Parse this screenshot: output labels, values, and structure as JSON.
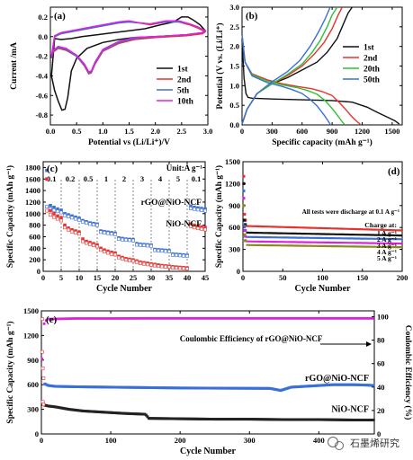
{
  "watermark": {
    "text": "石墨烯研究"
  },
  "chart_data": [
    {
      "panel": "(a)",
      "type": "line",
      "xlabel": "Potential vs (Li/Li⁺)/V",
      "ylabel": "Current /mA",
      "xlim": [
        0,
        3.0
      ],
      "ylim": [
        -0.9,
        0.3
      ],
      "xticks": [
        "0.0",
        "0.5",
        "1.0",
        "1.5",
        "2.0",
        "2.5",
        "3.0"
      ],
      "yticks": [
        "0.2",
        "0.0",
        "-0.2",
        "-0.4",
        "-0.6",
        "-0.8"
      ],
      "legend_position": "right",
      "colors": [
        "#111111",
        "#e8322d",
        "#3b6fd8",
        "#e020e0"
      ],
      "series": [
        {
          "name": "1st",
          "x": [
            0.02,
            0.08,
            0.15,
            0.22,
            0.28,
            0.33,
            0.4,
            0.5,
            0.7,
            1.0,
            1.3,
            1.6,
            2.0,
            2.3,
            2.6,
            2.9,
            2.95,
            2.85,
            2.72,
            2.62,
            2.5,
            2.35,
            2.1,
            1.8,
            1.5,
            1.2,
            0.9,
            0.6,
            0.4,
            0.2,
            0.08,
            0.02
          ],
          "y": [
            -0.4,
            -0.55,
            -0.66,
            -0.75,
            -0.74,
            -0.62,
            -0.35,
            -0.22,
            -0.12,
            -0.06,
            -0.03,
            -0.01,
            0.0,
            0.01,
            0.02,
            0.04,
            0.06,
            0.12,
            0.17,
            0.2,
            0.2,
            0.15,
            0.12,
            0.08,
            0.06,
            0.04,
            0.02,
            0.0,
            -0.02,
            -0.03,
            -0.02,
            -0.4
          ]
        },
        {
          "name": "2nd",
          "x": [
            0.02,
            0.05,
            0.15,
            0.3,
            0.5,
            0.65,
            0.73,
            0.78,
            0.85,
            1.0,
            1.3,
            1.6,
            2.0,
            2.3,
            2.6,
            2.9,
            2.95,
            2.8,
            2.65,
            2.45,
            2.2,
            1.9,
            1.7,
            1.5,
            1.3,
            1.0,
            0.7,
            0.4,
            0.2,
            0.08,
            0.02
          ],
          "y": [
            -0.22,
            -0.16,
            -0.12,
            -0.14,
            -0.2,
            -0.3,
            -0.38,
            -0.37,
            -0.28,
            -0.15,
            -0.07,
            -0.03,
            -0.01,
            0.0,
            0.01,
            0.03,
            0.05,
            0.09,
            0.12,
            0.15,
            0.15,
            0.12,
            0.14,
            0.15,
            0.14,
            0.11,
            0.08,
            0.05,
            0.03,
            0.0,
            -0.22
          ]
        },
        {
          "name": "5th",
          "x": [
            0.02,
            0.05,
            0.15,
            0.3,
            0.5,
            0.65,
            0.73,
            0.78,
            0.85,
            1.0,
            1.3,
            1.6,
            2.0,
            2.3,
            2.6,
            2.9,
            2.95,
            2.8,
            2.65,
            2.45,
            2.2,
            1.9,
            1.7,
            1.5,
            1.3,
            1.0,
            0.7,
            0.4,
            0.2,
            0.08,
            0.02
          ],
          "y": [
            -0.21,
            -0.15,
            -0.11,
            -0.13,
            -0.2,
            -0.29,
            -0.37,
            -0.36,
            -0.27,
            -0.14,
            -0.06,
            -0.02,
            0.0,
            0.01,
            0.02,
            0.04,
            0.06,
            0.1,
            0.13,
            0.15,
            0.15,
            0.13,
            0.14,
            0.15,
            0.14,
            0.11,
            0.08,
            0.05,
            0.03,
            0.0,
            -0.21
          ]
        },
        {
          "name": "10th",
          "x": [
            0.02,
            0.05,
            0.15,
            0.3,
            0.5,
            0.65,
            0.73,
            0.78,
            0.85,
            1.0,
            1.3,
            1.6,
            2.0,
            2.3,
            2.6,
            2.9,
            2.95,
            2.8,
            2.65,
            2.45,
            2.2,
            1.9,
            1.7,
            1.5,
            1.3,
            1.0,
            0.7,
            0.4,
            0.2,
            0.08,
            0.02
          ],
          "y": [
            -0.2,
            -0.14,
            -0.1,
            -0.12,
            -0.19,
            -0.28,
            -0.36,
            -0.35,
            -0.26,
            -0.13,
            -0.05,
            -0.01,
            0.0,
            0.01,
            0.02,
            0.04,
            0.06,
            0.1,
            0.13,
            0.16,
            0.16,
            0.13,
            0.14,
            0.16,
            0.15,
            0.12,
            0.09,
            0.06,
            0.04,
            0.01,
            -0.2
          ]
        }
      ]
    },
    {
      "panel": "(b)",
      "type": "line",
      "xlabel": "Specific capacity (mAh g⁻¹)",
      "ylabel": "Potential (V vs. (Li/Li⁺)",
      "xlim": [
        0,
        1600
      ],
      "ylim": [
        0,
        3.0
      ],
      "xticks": [
        "0",
        "300",
        "600",
        "900",
        "1200",
        "1500"
      ],
      "yticks": [
        "0.0",
        "0.5",
        "1.0",
        "1.5",
        "2.0",
        "2.5",
        "3.0"
      ],
      "legend_position": "right",
      "colors": [
        "#111111",
        "#e8322d",
        "#2ec22e",
        "#3b6fd8"
      ],
      "series": [
        {
          "name": "1st",
          "discharge_x": [
            0,
            20,
            40,
            60,
            100,
            300,
            600,
            900,
            1100,
            1250,
            1350,
            1450,
            1530,
            1570
          ],
          "discharge_y": [
            2.2,
            1.2,
            0.8,
            0.7,
            0.68,
            0.66,
            0.64,
            0.62,
            0.58,
            0.45,
            0.32,
            0.2,
            0.1,
            0.02
          ],
          "charge_x": [
            0,
            50,
            150,
            300,
            450,
            600,
            750,
            850,
            950,
            1000,
            1060,
            1100
          ],
          "charge_y": [
            0.02,
            0.4,
            0.8,
            1.05,
            1.2,
            1.4,
            1.6,
            1.85,
            2.2,
            2.5,
            2.85,
            3.0
          ]
        },
        {
          "name": "2nd",
          "discharge_x": [
            0,
            30,
            100,
            250,
            400,
            550,
            700,
            800,
            900,
            980,
            1050,
            1100,
            1150,
            1180
          ],
          "discharge_y": [
            2.3,
            1.6,
            1.3,
            1.15,
            1.05,
            0.98,
            0.92,
            0.85,
            0.75,
            0.55,
            0.35,
            0.2,
            0.08,
            0.02
          ],
          "charge_x": [
            0,
            50,
            150,
            300,
            450,
            600,
            720,
            820,
            900,
            960,
            1000
          ],
          "charge_y": [
            0.02,
            0.4,
            0.8,
            1.05,
            1.25,
            1.5,
            1.8,
            2.1,
            2.45,
            2.8,
            3.0
          ]
        },
        {
          "name": "20th",
          "discharge_x": [
            0,
            30,
            100,
            250,
            400,
            550,
            650,
            750,
            830,
            900,
            960,
            1000,
            1020
          ],
          "discharge_y": [
            2.3,
            1.6,
            1.28,
            1.12,
            1.02,
            0.95,
            0.88,
            0.78,
            0.62,
            0.42,
            0.22,
            0.08,
            0.02
          ],
          "charge_x": [
            0,
            50,
            150,
            300,
            450,
            600,
            700,
            780,
            850,
            900,
            950
          ],
          "charge_y": [
            0.02,
            0.4,
            0.8,
            1.05,
            1.28,
            1.55,
            1.85,
            2.15,
            2.5,
            2.8,
            3.0
          ]
        },
        {
          "name": "50th",
          "discharge_x": [
            0,
            30,
            100,
            250,
            400,
            500,
            600,
            680,
            750,
            820,
            860,
            880
          ],
          "discharge_y": [
            2.3,
            1.6,
            1.25,
            1.08,
            0.98,
            0.9,
            0.8,
            0.65,
            0.48,
            0.25,
            0.1,
            0.02
          ],
          "charge_x": [
            0,
            50,
            150,
            300,
            450,
            580,
            680,
            760,
            830,
            880
          ],
          "charge_y": [
            0.02,
            0.4,
            0.8,
            1.1,
            1.35,
            1.65,
            2.0,
            2.35,
            2.7,
            3.0
          ]
        }
      ]
    },
    {
      "panel": "(c)",
      "type": "scatter",
      "xlabel": "Cycle Number",
      "ylabel": "Specific Capacity (mAh g⁻¹)",
      "xlim": [
        0,
        45
      ],
      "ylim": [
        0,
        1900
      ],
      "xticks": [
        "0",
        "5",
        "10",
        "15",
        "20",
        "25",
        "30",
        "35",
        "40",
        "45"
      ],
      "yticks": [
        "0",
        "200",
        "400",
        "600",
        "800",
        "1000",
        "1200",
        "1400",
        "1600",
        "1800"
      ],
      "unit_label": "Unit:A g⁻¹",
      "rate_labels": [
        {
          "text": "0.1",
          "x": 2.3
        },
        {
          "text": "0.2",
          "x": 7.5
        },
        {
          "text": "0.5",
          "x": 12.5
        },
        {
          "text": "1",
          "x": 17.5
        },
        {
          "text": "2",
          "x": 22.5
        },
        {
          "text": "3",
          "x": 27.5
        },
        {
          "text": "4",
          "x": 32.5
        },
        {
          "text": "5",
          "x": 37.5
        },
        {
          "text": "0.1",
          "x": 42.5
        }
      ],
      "dividers_x": [
        5,
        10,
        15,
        20,
        25,
        30,
        35,
        40
      ],
      "colors": {
        "rGO@NiO-NCF": "#3b6fd8",
        "NiO-NCF": "#e8322d",
        "charge_edge": "#111111"
      },
      "series": [
        {
          "name": "rGO@NiO-NCF",
          "discharge": [
            1750,
            1140,
            1110,
            1080,
            1060,
            1000,
            980,
            960,
            940,
            920,
            880,
            860,
            840,
            830,
            820,
            700,
            690,
            680,
            670,
            660,
            580,
            570,
            560,
            555,
            550,
            480,
            470,
            465,
            460,
            455,
            380,
            375,
            370,
            365,
            360,
            300,
            295,
            290,
            285,
            280,
            1130,
            1110,
            1100,
            1090,
            1080
          ],
          "charge": [
            1120,
            1080,
            1060,
            1040,
            1020,
            970,
            950,
            930,
            910,
            890,
            860,
            840,
            820,
            810,
            800,
            680,
            670,
            660,
            650,
            640,
            560,
            550,
            545,
            540,
            535,
            460,
            455,
            450,
            445,
            440,
            365,
            360,
            355,
            350,
            345,
            285,
            280,
            275,
            270,
            265,
            1090,
            1080,
            1070,
            1060,
            1050
          ]
        },
        {
          "name": "NiO-NCF",
          "discharge": [
            1600,
            1050,
            1000,
            960,
            930,
            800,
            750,
            720,
            700,
            680,
            560,
            520,
            500,
            480,
            460,
            400,
            370,
            350,
            330,
            320,
            260,
            240,
            220,
            210,
            200,
            180,
            160,
            150,
            140,
            130,
            120,
            110,
            100,
            95,
            90,
            80,
            75,
            70,
            65,
            60,
            820,
            800,
            780,
            770,
            760
          ],
          "charge": [
            1050,
            980,
            940,
            910,
            880,
            760,
            720,
            690,
            670,
            650,
            520,
            490,
            470,
            450,
            430,
            370,
            340,
            320,
            300,
            290,
            240,
            220,
            200,
            190,
            180,
            160,
            140,
            130,
            120,
            110,
            100,
            90,
            85,
            80,
            75,
            65,
            60,
            55,
            50,
            45,
            780,
            760,
            745,
            735,
            725
          ]
        }
      ]
    },
    {
      "panel": "(d)",
      "type": "scatter",
      "xlabel": "Cycle Number",
      "ylabel": "Specific Capacity (mAh g⁻¹)",
      "xlim": [
        0,
        200
      ],
      "ylim": [
        0,
        1500
      ],
      "xticks": [
        "0",
        "50",
        "100",
        "150",
        "200"
      ],
      "yticks": [
        "0",
        "300",
        "600",
        "900",
        "1200",
        "1500"
      ],
      "annotation": "All tests were discharge at 0.1 A g⁻¹",
      "charge_label": "Charge at:",
      "colors": [
        "#e8322d",
        "#111111",
        "#3b6fd8",
        "#e020e0",
        "#8a8a1a"
      ],
      "series": [
        {
          "name": "1 A g⁻¹",
          "start": [
            1300,
            780,
            700
          ],
          "level_start": 620,
          "level_end": 560
        },
        {
          "name": "2 A g⁻¹",
          "start": [
            1200,
            700,
            640
          ],
          "level_start": 530,
          "level_end": 490
        },
        {
          "name": "3 A g⁻¹",
          "start": [
            1100,
            620,
            560
          ],
          "level_start": 470,
          "level_end": 440
        },
        {
          "name": "4 A g⁻¹",
          "start": [
            1000,
            560,
            480
          ],
          "level_start": 410,
          "level_end": 380
        },
        {
          "name": "5 A g⁻¹",
          "start": [
            900,
            500,
            420
          ],
          "level_start": 360,
          "level_end": 330
        }
      ]
    },
    {
      "panel": "(e)",
      "type": "scatter",
      "xlabel": "Cycle Number",
      "ylabel": "Specific Capacity (mAh g⁻¹)",
      "y2label": "Coulombic Efficiency (%)",
      "xlim": [
        0,
        480
      ],
      "ylim": [
        0,
        1500
      ],
      "y2lim": [
        0,
        105
      ],
      "xticks": [
        "0",
        "100",
        "200",
        "300",
        "400"
      ],
      "yticks": [
        "0",
        "300",
        "600",
        "900",
        "1200",
        "1500"
      ],
      "y2ticks": [
        "0",
        "20",
        "40",
        "60",
        "80",
        "100"
      ],
      "ce_label": "Coulombic Efficiency of rGO@NiO-NCF",
      "colors": {
        "rGO@NiO-NCF": "#3b6fd8",
        "NiO-NCF": "#222222",
        "CE": "#e020e0",
        "charge_edge": "#e8322d"
      },
      "series": [
        {
          "name": "rGO@NiO-NCF",
          "x": [
            1,
            2,
            3,
            4,
            5,
            10,
            20,
            50,
            100,
            150,
            200,
            250,
            300,
            330,
            345,
            360,
            380,
            400,
            420,
            450,
            470,
            480
          ],
          "y": [
            1400,
            800,
            680,
            640,
            610,
            590,
            580,
            575,
            570,
            565,
            560,
            558,
            556,
            555,
            530,
            570,
            580,
            590,
            600,
            600,
            595,
            590
          ]
        },
        {
          "name": "NiO-NCF",
          "x": [
            1,
            2,
            3,
            5,
            10,
            20,
            40,
            60,
            80,
            100,
            120,
            150,
            155,
            200,
            250,
            300,
            350,
            400,
            450,
            480
          ],
          "y": [
            1000,
            390,
            360,
            350,
            340,
            330,
            300,
            280,
            270,
            260,
            250,
            240,
            190,
            185,
            180,
            180,
            175,
            175,
            170,
            170
          ]
        },
        {
          "name": "CE",
          "x": [
            1,
            2,
            5,
            10,
            50,
            100,
            150,
            200,
            250,
            300,
            350,
            400,
            450,
            480
          ],
          "y": [
            64,
            90,
            96,
            98,
            98.5,
            98.5,
            98.6,
            98.6,
            98.6,
            98.6,
            98.6,
            98.6,
            98.6,
            98.6
          ]
        }
      ]
    }
  ]
}
